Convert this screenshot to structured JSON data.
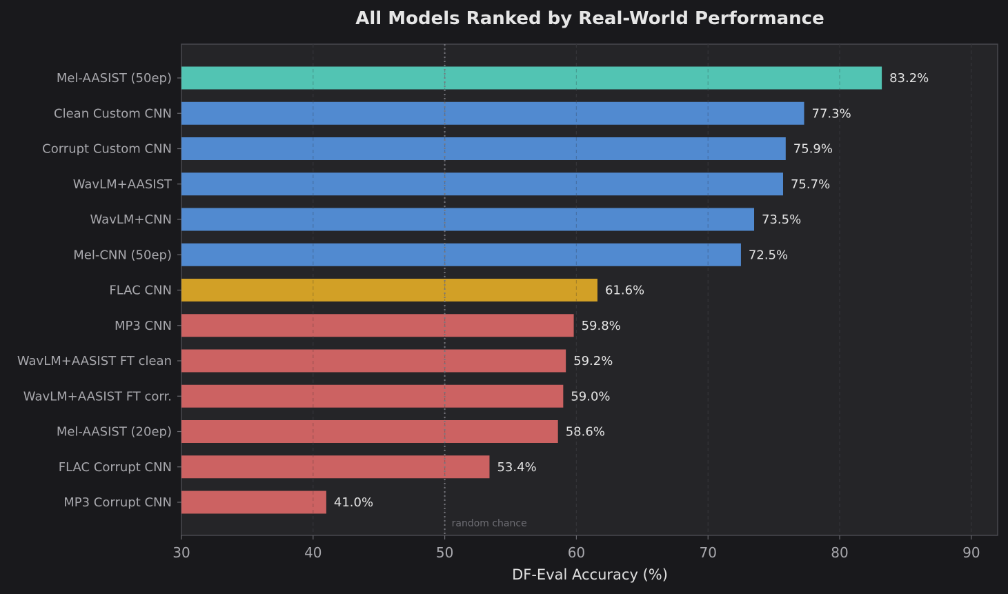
{
  "chart_data": {
    "type": "bar",
    "orientation": "horizontal",
    "title": "All Models Ranked by Real-World Performance",
    "xlabel": "DF-Eval Accuracy (%)",
    "ylabel": "",
    "xlim": [
      30,
      92
    ],
    "xticks": [
      30,
      40,
      50,
      60,
      70,
      80,
      90
    ],
    "grid": "vertical dashed",
    "categories": [
      "Mel-AASIST (50ep)",
      "Clean Custom CNN",
      "Corrupt Custom CNN",
      "WavLM+AASIST",
      "WavLM+CNN",
      "Mel-CNN (50ep)",
      "FLAC CNN",
      "MP3 CNN",
      "WavLM+AASIST FT clean",
      "WavLM+AASIST FT corr.",
      "Mel-AASIST (20ep)",
      "FLAC Corrupt CNN",
      "MP3 Corrupt CNN"
    ],
    "values": [
      83.2,
      77.3,
      75.9,
      75.7,
      73.5,
      72.5,
      61.6,
      59.8,
      59.2,
      59.0,
      58.6,
      53.4,
      41.0
    ],
    "data_labels": [
      "83.2%",
      "77.3%",
      "75.9%",
      "75.7%",
      "73.5%",
      "72.5%",
      "61.6%",
      "59.8%",
      "59.2%",
      "59.0%",
      "58.6%",
      "53.4%",
      "41.0%"
    ],
    "bar_colors": [
      "#52c4b3",
      "#518ad0",
      "#518ad0",
      "#518ad0",
      "#518ad0",
      "#518ad0",
      "#d2a026",
      "#cc6262",
      "#cc6262",
      "#cc6262",
      "#cc6262",
      "#cc6262",
      "#cc6262"
    ],
    "reference_line": {
      "x": 50,
      "label": "random chance",
      "style": "dotted"
    }
  },
  "colors": {
    "background": "#19191c",
    "plot_background": "#252528",
    "axis": "#48484e",
    "grid": "#38383d"
  }
}
